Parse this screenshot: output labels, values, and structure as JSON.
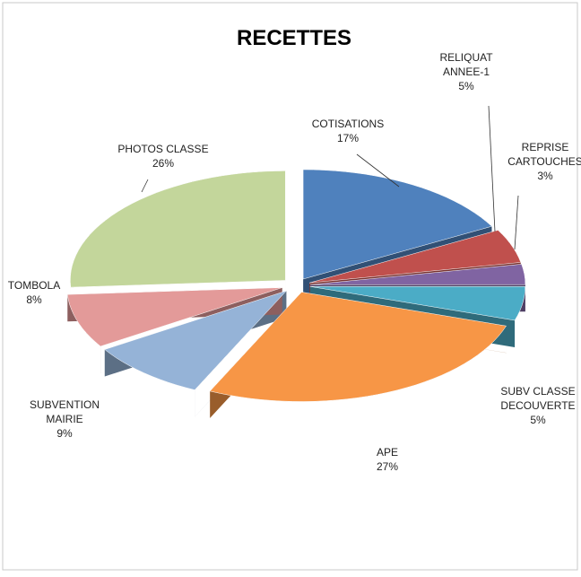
{
  "chart_data": {
    "type": "pie3d",
    "title": "RECETTES",
    "categories": [
      "COTISATIONS",
      "RELIQUAT\nANNEE-1",
      "REPRISE\nCARTOUCHES",
      "SUBV CLASSE\nDECOUVERTE",
      "APE",
      "SUBVENTION\nMAIRIE",
      "TOMBOLA",
      "PHOTOS CLASSE"
    ],
    "values": [
      17,
      5,
      3,
      5,
      27,
      9,
      8,
      26
    ],
    "value_labels": [
      "17%",
      "5%",
      "3%",
      "5%",
      "27%",
      "9%",
      "8%",
      "26%"
    ],
    "colors": [
      "#4f81bd",
      "#c0504d",
      "#8064a2",
      "#4bacc6",
      "#f79646",
      "#95b3d7",
      "#e39a99",
      "#c3d69b"
    ]
  }
}
